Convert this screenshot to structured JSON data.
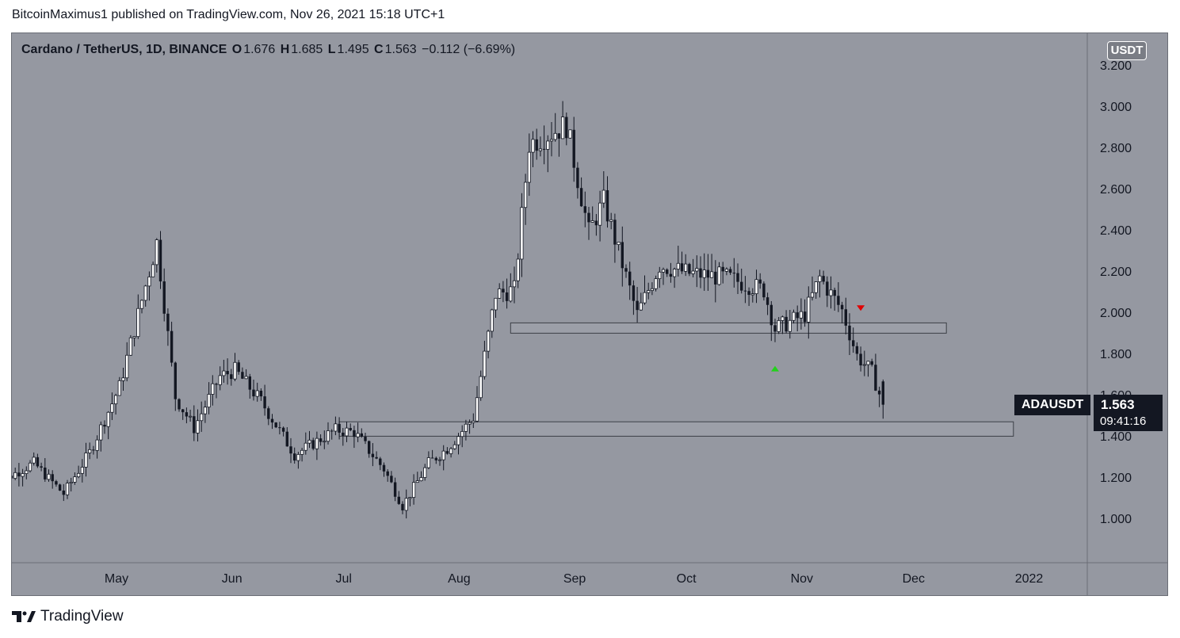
{
  "header": {
    "text": "BitcoinMaximus1 published on TradingView.com, Nov 26, 2021 15:18 UTC+1"
  },
  "legend": {
    "symbol": "Cardano / TetherUS, 1D, BINANCE",
    "o_label": "O",
    "o_value": "1.676",
    "h_label": "H",
    "h_value": "1.685",
    "l_label": "L",
    "l_value": "1.495",
    "c_label": "C",
    "c_value": "1.563",
    "change": "−0.112 (−6.69%)"
  },
  "currency_badge": "USDT",
  "price_tag": {
    "symbol": "ADAUSDT",
    "price": "1.563",
    "countdown": "09:41:16"
  },
  "footer": {
    "brand": "TradingView"
  },
  "colors": {
    "background": "#9598a1",
    "candle": "#131722",
    "zone_fill": "#a3a6ae",
    "zone_stroke": "#3c3f46",
    "arrow_up": "#22d11b",
    "arrow_down": "#e00000"
  },
  "chart_data": {
    "type": "candlestick",
    "title": "Cardano / TetherUS, 1D, BINANCE",
    "ylabel": "USDT",
    "ylim": [
      0.8,
      3.25
    ],
    "y_ticks": [
      "3.200",
      "3.000",
      "2.800",
      "2.600",
      "2.400",
      "2.200",
      "2.000",
      "1.800",
      "1.600",
      "1.400",
      "1.200",
      "1.000"
    ],
    "x_ticks": [
      "May",
      "Jun",
      "Jul",
      "Aug",
      "Sep",
      "Oct",
      "Nov",
      "Dec",
      "2022"
    ],
    "anchors": [
      {
        "date": "Apr 01",
        "price": 1.17
      },
      {
        "date": "Apr 12",
        "price": 1.28
      },
      {
        "date": "Apr 20",
        "price": 1.13
      },
      {
        "date": "Apr 27",
        "price": 1.33
      },
      {
        "date": "May 05",
        "price": 1.65
      },
      {
        "date": "May 15",
        "price": 2.35
      },
      {
        "date": "May 20",
        "price": 1.6
      },
      {
        "date": "May 25",
        "price": 1.45
      },
      {
        "date": "Jun 01",
        "price": 1.7
      },
      {
        "date": "Jun 05",
        "price": 1.73
      },
      {
        "date": "Jun 12",
        "price": 1.58
      },
      {
        "date": "Jun 21",
        "price": 1.32
      },
      {
        "date": "Jul 02",
        "price": 1.44
      },
      {
        "date": "Jul 07",
        "price": 1.43
      },
      {
        "date": "Jul 15",
        "price": 1.25
      },
      {
        "date": "Jul 20",
        "price": 1.07
      },
      {
        "date": "Jul 27",
        "price": 1.28
      },
      {
        "date": "Aug 01",
        "price": 1.35
      },
      {
        "date": "Aug 08",
        "price": 1.5
      },
      {
        "date": "Aug 14",
        "price": 2.1
      },
      {
        "date": "Aug 19",
        "price": 2.12
      },
      {
        "date": "Aug 23",
        "price": 2.83
      },
      {
        "date": "Sep 02",
        "price": 2.92
      },
      {
        "date": "Sep 08",
        "price": 2.4
      },
      {
        "date": "Sep 12",
        "price": 2.55
      },
      {
        "date": "Sep 21",
        "price": 2.0
      },
      {
        "date": "Sep 27",
        "price": 2.24
      },
      {
        "date": "Oct 05",
        "price": 2.2
      },
      {
        "date": "Oct 15",
        "price": 2.18
      },
      {
        "date": "Oct 25",
        "price": 2.12
      },
      {
        "date": "Oct 28",
        "price": 1.93
      },
      {
        "date": "Nov 05",
        "price": 2.0
      },
      {
        "date": "Nov 09",
        "price": 2.18
      },
      {
        "date": "Nov 15",
        "price": 2.02
      },
      {
        "date": "Nov 19",
        "price": 1.8
      },
      {
        "date": "Nov 23",
        "price": 1.72
      },
      {
        "date": "Nov 26",
        "price": 1.563
      }
    ],
    "support_zones": [
      {
        "label": "upper horizontal zone",
        "low": 1.91,
        "high": 1.96,
        "from": "Aug 18",
        "to": "Dec 13"
      },
      {
        "label": "lower horizontal zone",
        "low": 1.41,
        "high": 1.48,
        "from": "Jul 03",
        "to": "Dec 31"
      }
    ],
    "markers": [
      {
        "type": "up-arrow",
        "color": "green",
        "date": "Oct 28",
        "price": 1.74
      },
      {
        "type": "down-arrow",
        "color": "red",
        "date": "Nov 20",
        "price": 2.03
      }
    ],
    "last_price": 1.563
  }
}
